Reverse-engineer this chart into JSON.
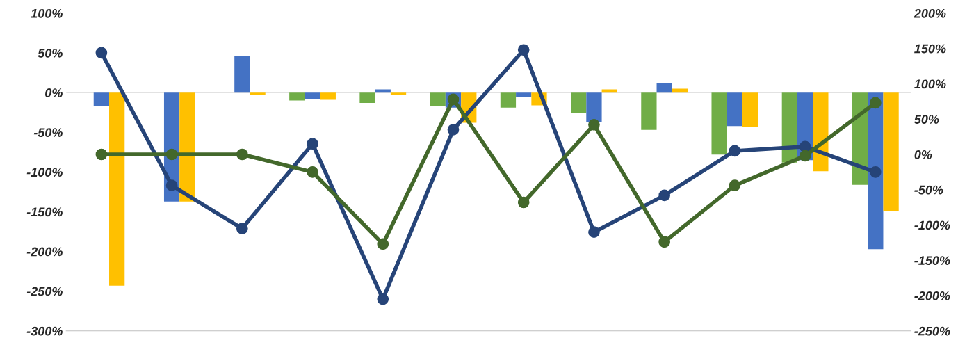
{
  "chart_data": {
    "type": "bar",
    "categories": [
      null,
      null,
      null,
      null,
      null,
      null,
      null,
      null,
      null,
      null,
      null,
      null
    ],
    "series": [
      {
        "color": "#70ad47",
        "values": [
          null,
          null,
          null,
          -10,
          -13,
          -17,
          -19,
          -26,
          -47,
          -78,
          -88,
          -116
        ]
      },
      {
        "color": "#4472c4",
        "values": [
          -17,
          -137,
          46,
          -8,
          4,
          -19,
          -6,
          -37,
          12,
          -42,
          -85,
          -197
        ]
      },
      {
        "color": "#ffc000",
        "values": [
          -243,
          -137,
          -3,
          -9,
          -3,
          -38,
          -16,
          4,
          5,
          -43,
          -99,
          -149
        ]
      },
      {
        "type": "line",
        "axis": "y2",
        "color": "#264478",
        "values": [
          144,
          -44,
          -105,
          15,
          -205,
          35,
          148,
          -110,
          -58,
          5,
          11,
          -25
        ]
      },
      {
        "type": "line",
        "axis": "y2",
        "color": "#43682b",
        "values": [
          0,
          0,
          0,
          -25,
          -127,
          78,
          -68,
          42,
          -124,
          -44,
          -2,
          73
        ]
      }
    ],
    "ylim": [
      -300,
      100
    ],
    "yticks": [
      {
        "value": 100,
        "label": "100%"
      },
      {
        "value": 50,
        "label": "50%"
      },
      {
        "value": 0,
        "label": "0%"
      },
      {
        "value": -50,
        "label": "-50%"
      },
      {
        "value": -100,
        "label": "-100%"
      },
      {
        "value": -150,
        "label": "-150%"
      },
      {
        "value": -200,
        "label": "-200%"
      },
      {
        "value": -250,
        "label": "-250%"
      },
      {
        "value": -300,
        "label": "-300%"
      }
    ],
    "y2lim": [
      -250,
      200
    ],
    "y2ticks": [
      {
        "value": 200,
        "label": "200%"
      },
      {
        "value": 150,
        "label": "150%"
      },
      {
        "value": 100,
        "label": "100%"
      },
      {
        "value": 50,
        "label": "50%"
      },
      {
        "value": 0,
        "label": "0%"
      },
      {
        "value": -50,
        "label": "-50%"
      },
      {
        "value": -100,
        "label": "-100%"
      },
      {
        "value": -150,
        "label": "-150%"
      },
      {
        "value": -200,
        "label": "-200%"
      },
      {
        "value": -250,
        "label": "-250%"
      }
    ],
    "ref_lines": [
      {
        "axis": "y",
        "value": 0,
        "color": "#d9d9d9"
      }
    ],
    "marker": "circle",
    "line_style": "solid",
    "grid": false,
    "legend": false
  }
}
